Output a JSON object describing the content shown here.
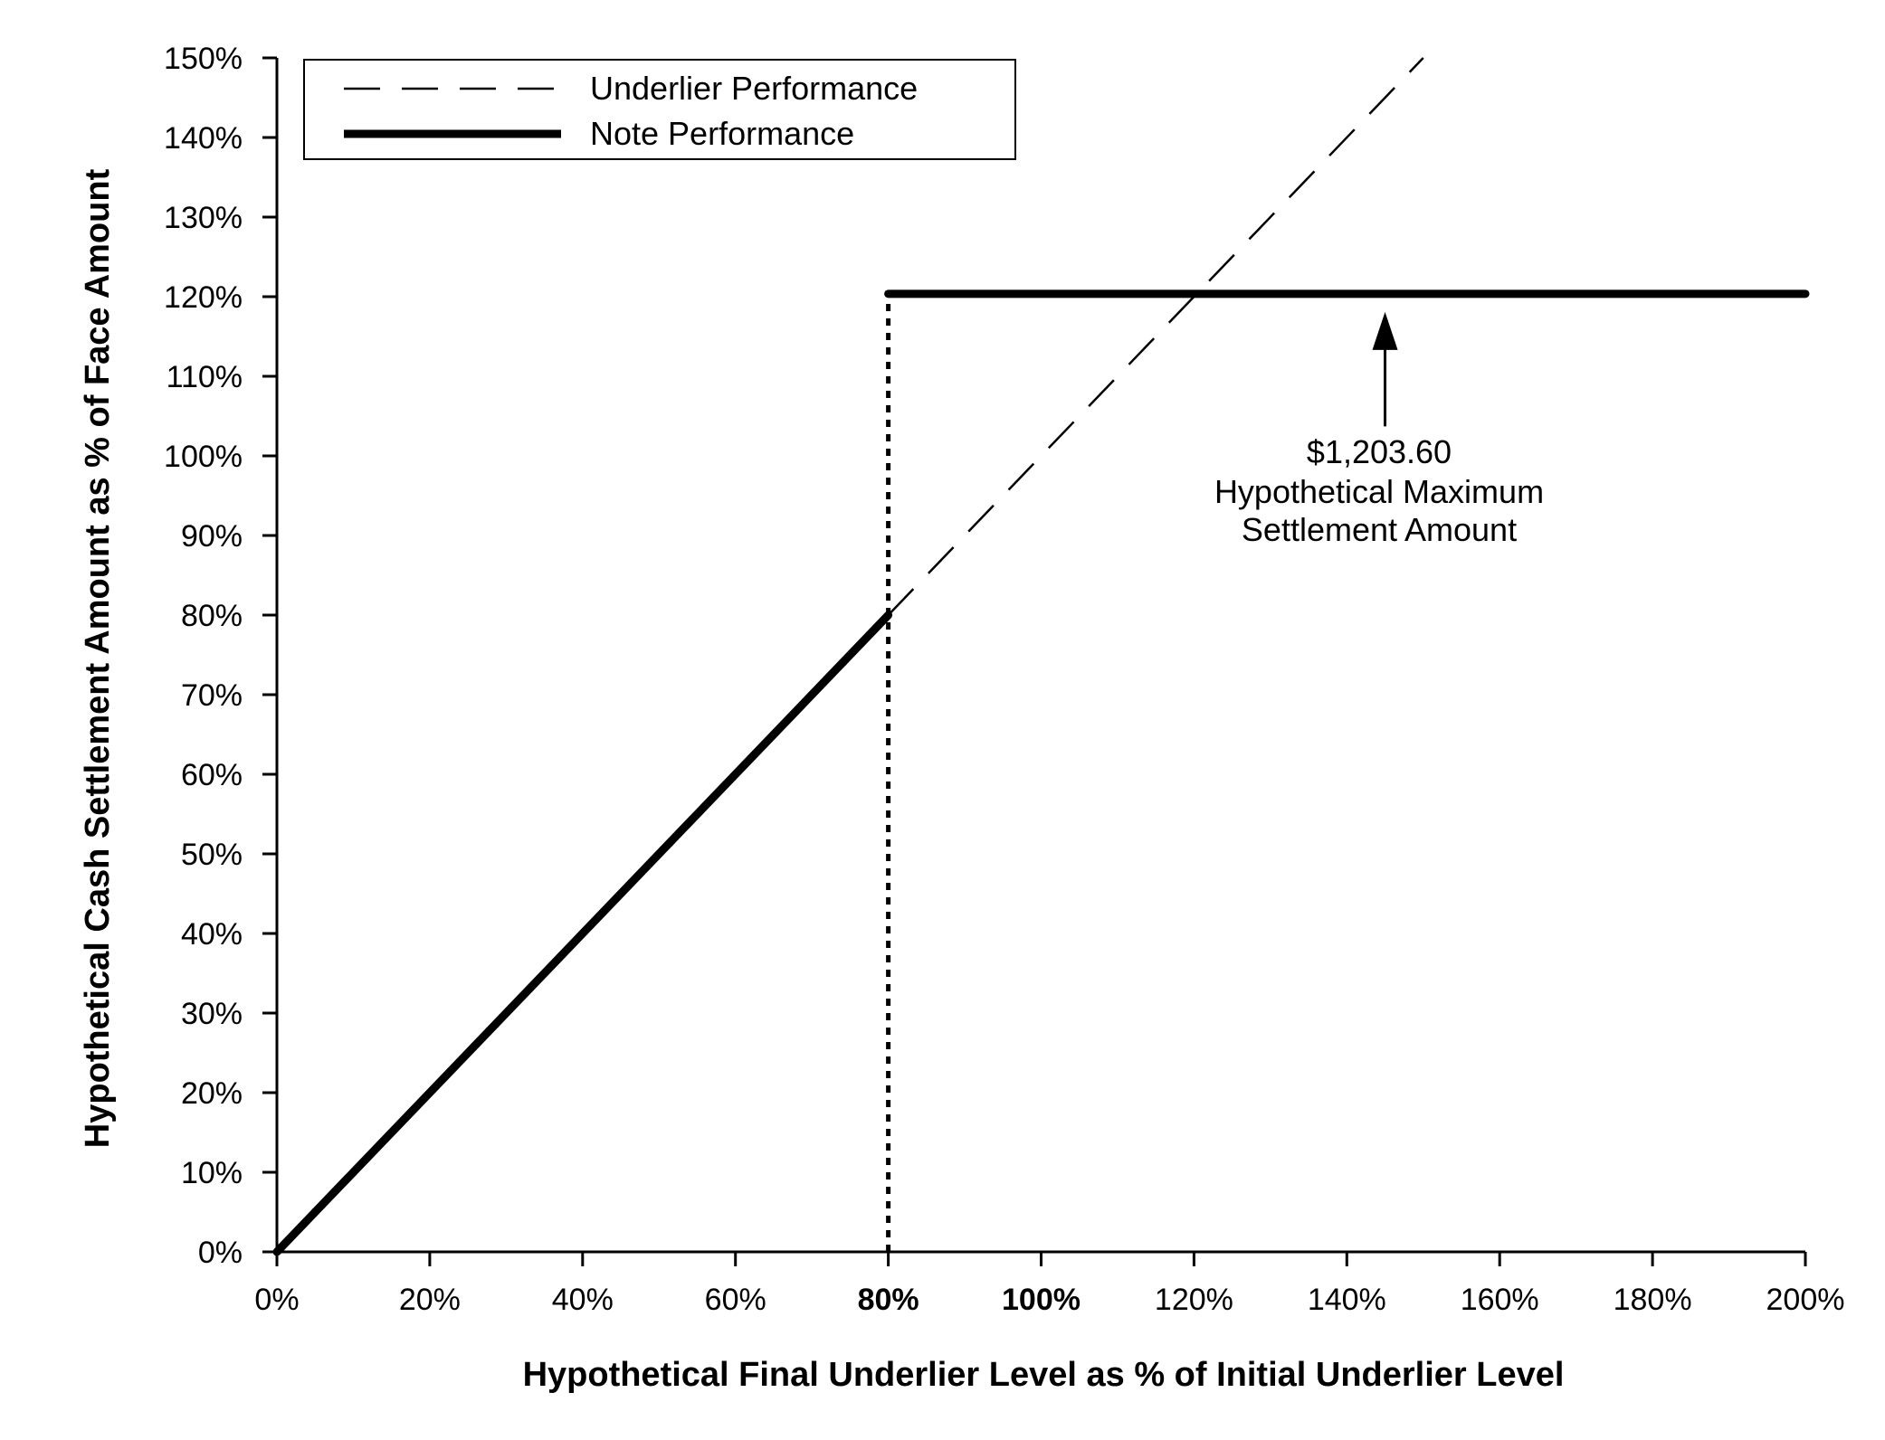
{
  "chart_data": {
    "type": "line",
    "xlabel": "Hypothetical Final Underlier Level as % of Initial Underlier Level",
    "ylabel": "Hypothetical Cash Settlement Amount as % of Face Amount",
    "xlim": [
      0,
      200
    ],
    "ylim": [
      0,
      150
    ],
    "x_ticks": [
      {
        "value": 0,
        "label": "0%",
        "bold": false
      },
      {
        "value": 20,
        "label": "20%",
        "bold": false
      },
      {
        "value": 40,
        "label": "40%",
        "bold": false
      },
      {
        "value": 60,
        "label": "60%",
        "bold": false
      },
      {
        "value": 80,
        "label": "80%",
        "bold": true
      },
      {
        "value": 100,
        "label": "100%",
        "bold": true
      },
      {
        "value": 120,
        "label": "120%",
        "bold": false
      },
      {
        "value": 140,
        "label": "140%",
        "bold": false
      },
      {
        "value": 160,
        "label": "160%",
        "bold": false
      },
      {
        "value": 180,
        "label": "180%",
        "bold": false
      },
      {
        "value": 200,
        "label": "200%",
        "bold": false
      }
    ],
    "y_ticks": [
      {
        "value": 0,
        "label": "0%"
      },
      {
        "value": 10,
        "label": "10%"
      },
      {
        "value": 20,
        "label": "20%"
      },
      {
        "value": 30,
        "label": "30%"
      },
      {
        "value": 40,
        "label": "40%"
      },
      {
        "value": 50,
        "label": "50%"
      },
      {
        "value": 60,
        "label": "60%"
      },
      {
        "value": 70,
        "label": "70%"
      },
      {
        "value": 80,
        "label": "80%"
      },
      {
        "value": 90,
        "label": "90%"
      },
      {
        "value": 100,
        "label": "100%"
      },
      {
        "value": 110,
        "label": "110%"
      },
      {
        "value": 120,
        "label": "120%"
      },
      {
        "value": 130,
        "label": "130%"
      },
      {
        "value": 140,
        "label": "140%"
      },
      {
        "value": 150,
        "label": "150%"
      }
    ],
    "series": [
      {
        "name": "Underlier Performance",
        "style": "dashed",
        "points": [
          {
            "x": 80,
            "y": 80
          },
          {
            "x": 150,
            "y": 150
          }
        ]
      },
      {
        "name": "Note Performance",
        "style": "solid-thick",
        "segments": [
          [
            {
              "x": 0,
              "y": 0
            },
            {
              "x": 80,
              "y": 80
            }
          ],
          [
            {
              "x": 80,
              "y": 120.36
            },
            {
              "x": 200,
              "y": 120.36
            }
          ]
        ]
      }
    ],
    "reference_line": {
      "x": 80,
      "y_from": 0,
      "y_to": 120.36,
      "style": "dotted"
    },
    "annotation": {
      "lines": [
        "$1,203.60",
        "Hypothetical Maximum",
        "Settlement Amount"
      ],
      "arrow_target": {
        "x": 145,
        "y": 120.36
      },
      "arrow_tail": {
        "x": 145,
        "y": 102
      }
    },
    "legend_position": "top-left",
    "grid": false,
    "colors": {
      "line": "#000000",
      "background": "#ffffff"
    }
  }
}
